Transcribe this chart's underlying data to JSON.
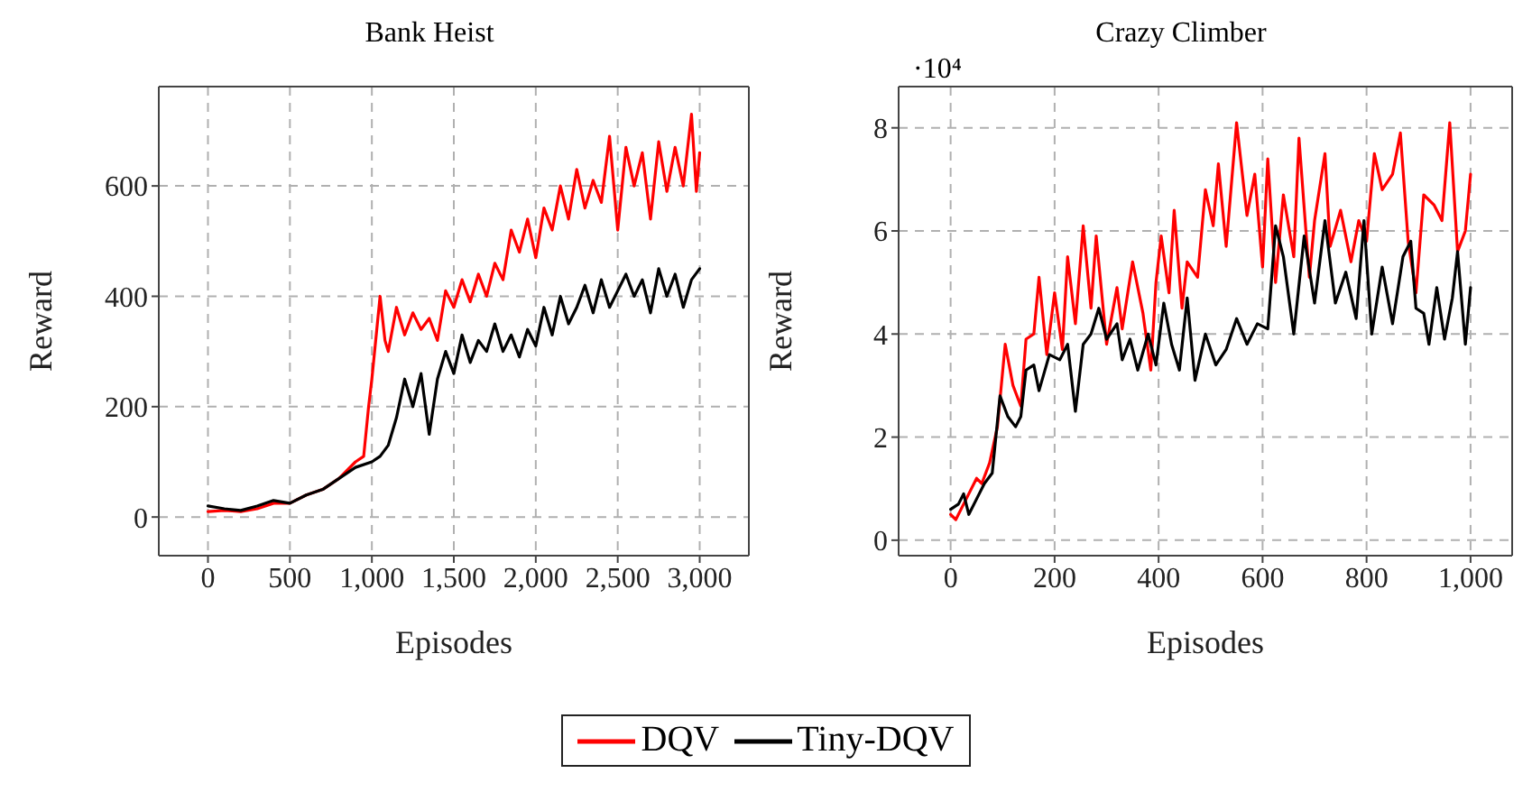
{
  "chart_data": [
    {
      "type": "line",
      "title": "Bank Heist",
      "xlabel": "Episodes",
      "ylabel": "Reward",
      "xlim": [
        -300,
        3300
      ],
      "ylim": [
        -70,
        780
      ],
      "xticks": [
        0,
        500,
        {
          "value": 1000,
          "label": "1,000"
        },
        {
          "value": 1500,
          "label": "1,500"
        },
        {
          "value": 2000,
          "label": "2,000"
        },
        {
          "value": 2500,
          "label": "2,500"
        },
        {
          "value": 3000,
          "label": "3,000"
        }
      ],
      "yticks": [
        0,
        200,
        400,
        600
      ],
      "grid": true,
      "legend": "bottom",
      "marker": "none",
      "line_style": "solid",
      "series": [
        {
          "name": "DQV",
          "color": "#ff0000",
          "x": [
            0,
            100,
            200,
            300,
            400,
            500,
            600,
            700,
            800,
            900,
            950,
            980,
            1000,
            1050,
            1080,
            1100,
            1150,
            1200,
            1250,
            1300,
            1350,
            1400,
            1450,
            1500,
            1550,
            1600,
            1650,
            1700,
            1750,
            1800,
            1850,
            1900,
            1950,
            2000,
            2050,
            2100,
            2150,
            2200,
            2250,
            2300,
            2350,
            2400,
            2450,
            2500,
            2550,
            2600,
            2650,
            2700,
            2750,
            2800,
            2850,
            2900,
            2950,
            2980,
            3000
          ],
          "values": [
            10,
            12,
            10,
            15,
            25,
            25,
            40,
            50,
            70,
            100,
            110,
            200,
            250,
            400,
            320,
            300,
            380,
            330,
            370,
            340,
            360,
            320,
            410,
            380,
            430,
            390,
            440,
            400,
            460,
            430,
            520,
            480,
            540,
            470,
            560,
            520,
            600,
            540,
            630,
            560,
            610,
            570,
            690,
            520,
            670,
            600,
            660,
            540,
            680,
            590,
            670,
            600,
            730,
            590,
            660
          ]
        },
        {
          "name": "Tiny-DQV",
          "color": "#000000",
          "x": [
            0,
            100,
            200,
            300,
            400,
            500,
            600,
            700,
            800,
            900,
            1000,
            1050,
            1100,
            1150,
            1200,
            1250,
            1300,
            1350,
            1400,
            1450,
            1500,
            1550,
            1600,
            1650,
            1700,
            1750,
            1800,
            1850,
            1900,
            1950,
            2000,
            2050,
            2100,
            2150,
            2200,
            2250,
            2300,
            2350,
            2400,
            2450,
            2500,
            2550,
            2600,
            2650,
            2700,
            2750,
            2800,
            2850,
            2900,
            2950,
            3000
          ],
          "values": [
            20,
            15,
            12,
            20,
            30,
            25,
            40,
            50,
            70,
            90,
            100,
            110,
            130,
            180,
            250,
            200,
            260,
            150,
            250,
            300,
            260,
            330,
            280,
            320,
            300,
            350,
            300,
            330,
            290,
            340,
            310,
            380,
            330,
            400,
            350,
            380,
            420,
            370,
            430,
            380,
            410,
            440,
            400,
            430,
            370,
            450,
            400,
            440,
            380,
            430,
            450
          ]
        }
      ]
    },
    {
      "type": "line",
      "title": "Crazy Climber",
      "xlabel": "Episodes",
      "ylabel": "Reward",
      "annotations": [
        "·10⁴"
      ],
      "xlim": [
        -100,
        1080
      ],
      "ylim": [
        -0.3,
        8.8
      ],
      "xticks": [
        0,
        200,
        400,
        600,
        800,
        {
          "value": 1000,
          "label": "1,000"
        }
      ],
      "yticks": [
        0,
        2,
        4,
        6,
        8
      ],
      "grid": true,
      "marker": "none",
      "line_style": "solid",
      "series": [
        {
          "name": "DQV",
          "color": "#ff0000",
          "x": [
            0,
            10,
            30,
            50,
            60,
            75,
            90,
            105,
            120,
            135,
            145,
            160,
            170,
            185,
            200,
            215,
            225,
            240,
            255,
            270,
            280,
            300,
            320,
            330,
            350,
            370,
            385,
            395,
            405,
            420,
            430,
            445,
            455,
            475,
            490,
            505,
            515,
            530,
            550,
            570,
            585,
            600,
            610,
            625,
            640,
            660,
            670,
            690,
            700,
            720,
            730,
            750,
            770,
            785,
            800,
            815,
            830,
            850,
            865,
            880,
            895,
            910,
            930,
            945,
            960,
            975,
            990,
            1000
          ],
          "values": [
            0.5,
            0.4,
            0.8,
            1.2,
            1.1,
            1.5,
            2.2,
            3.8,
            3.0,
            2.6,
            3.9,
            4.0,
            5.1,
            3.6,
            4.8,
            3.7,
            5.5,
            4.2,
            6.1,
            4.5,
            5.9,
            3.8,
            4.9,
            4.1,
            5.4,
            4.4,
            3.3,
            5.0,
            5.9,
            4.8,
            6.4,
            4.5,
            5.4,
            5.1,
            6.8,
            6.1,
            7.3,
            5.7,
            8.1,
            6.3,
            7.1,
            5.3,
            7.4,
            5.0,
            6.7,
            5.5,
            7.8,
            5.1,
            6.2,
            7.5,
            5.7,
            6.4,
            5.4,
            6.2,
            5.8,
            7.5,
            6.8,
            7.1,
            7.9,
            5.8,
            4.8,
            6.7,
            6.5,
            6.2,
            8.1,
            5.6,
            6.0,
            7.1
          ]
        },
        {
          "name": "Tiny-DQV",
          "color": "#000000",
          "x": [
            0,
            15,
            25,
            35,
            50,
            65,
            80,
            95,
            110,
            125,
            135,
            145,
            160,
            170,
            190,
            210,
            225,
            240,
            255,
            270,
            285,
            300,
            320,
            330,
            345,
            360,
            380,
            395,
            410,
            425,
            440,
            455,
            470,
            490,
            510,
            530,
            550,
            570,
            590,
            610,
            625,
            640,
            660,
            680,
            700,
            720,
            740,
            760,
            780,
            795,
            810,
            830,
            850,
            870,
            885,
            895,
            910,
            920,
            935,
            950,
            965,
            975,
            990,
            1000
          ],
          "values": [
            0.6,
            0.7,
            0.9,
            0.5,
            0.8,
            1.1,
            1.3,
            2.8,
            2.4,
            2.2,
            2.4,
            3.3,
            3.4,
            2.9,
            3.6,
            3.5,
            3.8,
            2.5,
            3.8,
            4.0,
            4.5,
            3.9,
            4.2,
            3.5,
            3.9,
            3.3,
            4.0,
            3.4,
            4.6,
            3.8,
            3.3,
            4.7,
            3.1,
            4.0,
            3.4,
            3.7,
            4.3,
            3.8,
            4.2,
            4.1,
            6.1,
            5.5,
            4.0,
            5.9,
            4.6,
            6.2,
            4.6,
            5.2,
            4.3,
            6.2,
            4.0,
            5.3,
            4.2,
            5.5,
            5.8,
            4.5,
            4.4,
            3.8,
            4.9,
            3.9,
            4.7,
            5.6,
            3.8,
            4.9
          ]
        }
      ]
    }
  ]
}
